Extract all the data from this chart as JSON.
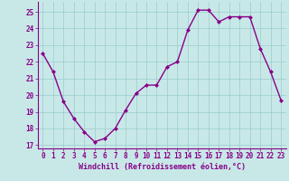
{
  "x": [
    0,
    1,
    2,
    3,
    4,
    5,
    6,
    7,
    8,
    9,
    10,
    11,
    12,
    13,
    14,
    15,
    16,
    17,
    18,
    19,
    20,
    21,
    22,
    23
  ],
  "y": [
    22.5,
    21.4,
    19.6,
    18.6,
    17.8,
    17.2,
    17.4,
    18.0,
    19.1,
    20.1,
    20.6,
    20.6,
    21.7,
    22.0,
    23.9,
    25.1,
    25.1,
    24.4,
    24.7,
    24.7,
    24.7,
    22.8,
    21.4,
    19.7
  ],
  "line_color": "#880088",
  "marker": "D",
  "marker_size": 2.0,
  "bg_color": "#c8e8e8",
  "grid_color": "#99cccc",
  "xlabel": "Windchill (Refroidissement éolien,°C)",
  "xlabel_fontsize": 6.0,
  "ylim": [
    16.8,
    25.6
  ],
  "yticks": [
    17,
    18,
    19,
    20,
    21,
    22,
    23,
    24,
    25
  ],
  "xticks": [
    0,
    1,
    2,
    3,
    4,
    5,
    6,
    7,
    8,
    9,
    10,
    11,
    12,
    13,
    14,
    15,
    16,
    17,
    18,
    19,
    20,
    21,
    22,
    23
  ],
  "tick_fontsize": 5.5,
  "line_width": 1.0
}
